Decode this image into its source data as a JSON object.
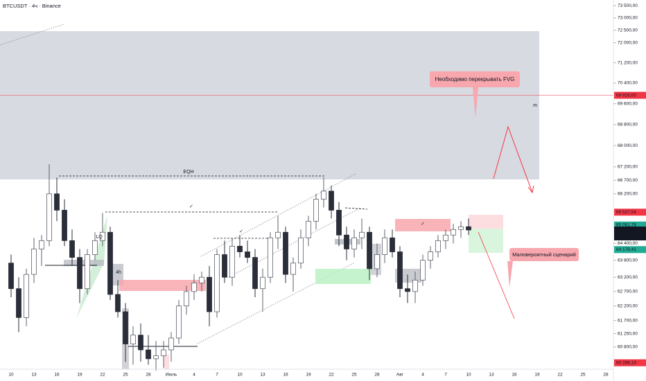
{
  "chart_data": {
    "type": "candlestick",
    "title": "BTCUSDT · 4ч · Binance",
    "log_scale": true,
    "up_color": "#5d606b",
    "down_color": "#2a2e39",
    "ylim": [
      60050,
      73730
    ],
    "yticks": [
      {
        "value": 73500,
        "label": "73 500,00"
      },
      {
        "value": 73000,
        "label": "73 000,00"
      },
      {
        "value": 72500,
        "label": "72 500,00"
      },
      {
        "value": 72000,
        "label": "72 000,00"
      },
      {
        "value": 71200,
        "label": "71 200,00"
      },
      {
        "value": 70400,
        "label": "70 400,00"
      },
      {
        "value": 69600,
        "label": "69 600,00"
      },
      {
        "value": 68800,
        "label": "68 800,00"
      },
      {
        "value": 68000,
        "label": "68 000,00"
      },
      {
        "value": 67200,
        "label": "67 200,00"
      },
      {
        "value": 66700,
        "label": "66 700,00"
      },
      {
        "value": 66200,
        "label": "66 200,00"
      },
      {
        "value": 64400,
        "label": "64 400,00"
      },
      {
        "value": 63800,
        "label": "63 800,00"
      },
      {
        "value": 63200,
        "label": "63 200,00"
      },
      {
        "value": 62700,
        "label": "62 700,00"
      },
      {
        "value": 62200,
        "label": "62 200,00"
      },
      {
        "value": 61700,
        "label": "61 700,00"
      },
      {
        "value": 61250,
        "label": "61 250,00"
      },
      {
        "value": 60800,
        "label": "60 800,00"
      }
    ],
    "x_tick_labels": [
      "10",
      "13",
      "16",
      "19",
      "22",
      "25",
      "28",
      "Июль",
      "4",
      "7",
      "10",
      "13",
      "16",
      "19",
      "22",
      "25",
      "28",
      "Авг",
      "4",
      "7",
      "10",
      "13",
      "16",
      "19",
      "22",
      "25",
      "28"
    ],
    "open": [
      63700,
      62800,
      61800,
      63300,
      64200,
      64500,
      66200,
      65600,
      64500,
      63900,
      62800,
      64000,
      64500,
      64800,
      62600,
      62000,
      60900,
      61200,
      60700,
      60400,
      60500,
      60700,
      61100,
      62200,
      62700,
      63000,
      63200,
      62000,
      64000,
      63200,
      64300,
      64100,
      63900,
      62800,
      63200,
      64600,
      64800,
      63300,
      63700,
      64600,
      65200,
      66000,
      66300,
      65600,
      64700,
      64200,
      64600,
      64800,
      63500,
      64000,
      64600,
      64100,
      62800,
      62700,
      63100,
      63800,
      64100,
      64500,
      64700,
      64900,
      65000
    ],
    "high": [
      64000,
      63200,
      63500,
      64600,
      64700,
      67300,
      66800,
      66000,
      64900,
      64200,
      64200,
      64800,
      65500,
      65000,
      63100,
      62300,
      61500,
      61600,
      61200,
      61000,
      61000,
      61300,
      62400,
      62900,
      63300,
      63400,
      63600,
      64200,
      64500,
      64600,
      64700,
      64500,
      64200,
      63500,
      64800,
      65400,
      65000,
      63900,
      64900,
      65400,
      66200,
      66800,
      66500,
      65900,
      65000,
      64900,
      65300,
      65000,
      64400,
      64900,
      64900,
      64300,
      63300,
      63400,
      64000,
      64300,
      64700,
      64900,
      65100,
      65200,
      65300
    ],
    "low": [
      62500,
      61300,
      61500,
      63000,
      63600,
      64300,
      65200,
      64300,
      63600,
      62300,
      62600,
      63800,
      64300,
      62400,
      61800,
      60300,
      60200,
      60300,
      60200,
      60000,
      60100,
      60300,
      60900,
      61900,
      62400,
      62700,
      61500,
      61800,
      63000,
      62900,
      63900,
      63700,
      62500,
      62000,
      63000,
      64200,
      63000,
      62700,
      63500,
      64300,
      64900,
      65700,
      65300,
      64300,
      63800,
      63900,
      64200,
      63100,
      63200,
      63700,
      63900,
      62500,
      62300,
      62300,
      62900,
      63500,
      63900,
      64200,
      64400,
      64600,
      64700
    ],
    "close": [
      62800,
      61800,
      63300,
      64200,
      64500,
      66200,
      65600,
      64500,
      63900,
      62800,
      64000,
      64500,
      64800,
      62600,
      62000,
      60900,
      61200,
      60700,
      60400,
      60500,
      60700,
      61100,
      62200,
      62700,
      63000,
      63200,
      62000,
      64000,
      63200,
      64300,
      64100,
      63900,
      62800,
      63200,
      64600,
      64800,
      63300,
      63700,
      64600,
      65200,
      66000,
      66300,
      65600,
      64700,
      64200,
      64600,
      64800,
      63500,
      64000,
      64600,
      64100,
      62800,
      62700,
      63100,
      63800,
      64100,
      64500,
      64700,
      64900,
      65000,
      64882
    ],
    "price_labels": [
      {
        "value": 69926,
        "label": "69 926,00",
        "color": "#f23645"
      },
      {
        "value": 65527.54,
        "label": "65 527,54",
        "color": "#f23645"
      },
      {
        "value": 65061.78,
        "label": "65 061,78",
        "color": "#22ab94"
      },
      {
        "value": 64882,
        "label": "64 882,00",
        "color": "#131722"
      },
      {
        "value": 64178.41,
        "label": "64 178,41",
        "color": "#22ab94"
      },
      {
        "value": 60266.19,
        "label": "60 266,19",
        "color": "#f23645"
      }
    ],
    "countdown": "02:54:29",
    "annotations": {
      "eqh": "EQH",
      "lq": "LQ",
      "tf": "4h",
      "check1": "✓",
      "check2": "✓",
      "check3": "✓",
      "fvg_note": "Необходимо перекрывать FVG",
      "scenario_note": "Маловероятный сценарий",
      "m": "m"
    }
  }
}
